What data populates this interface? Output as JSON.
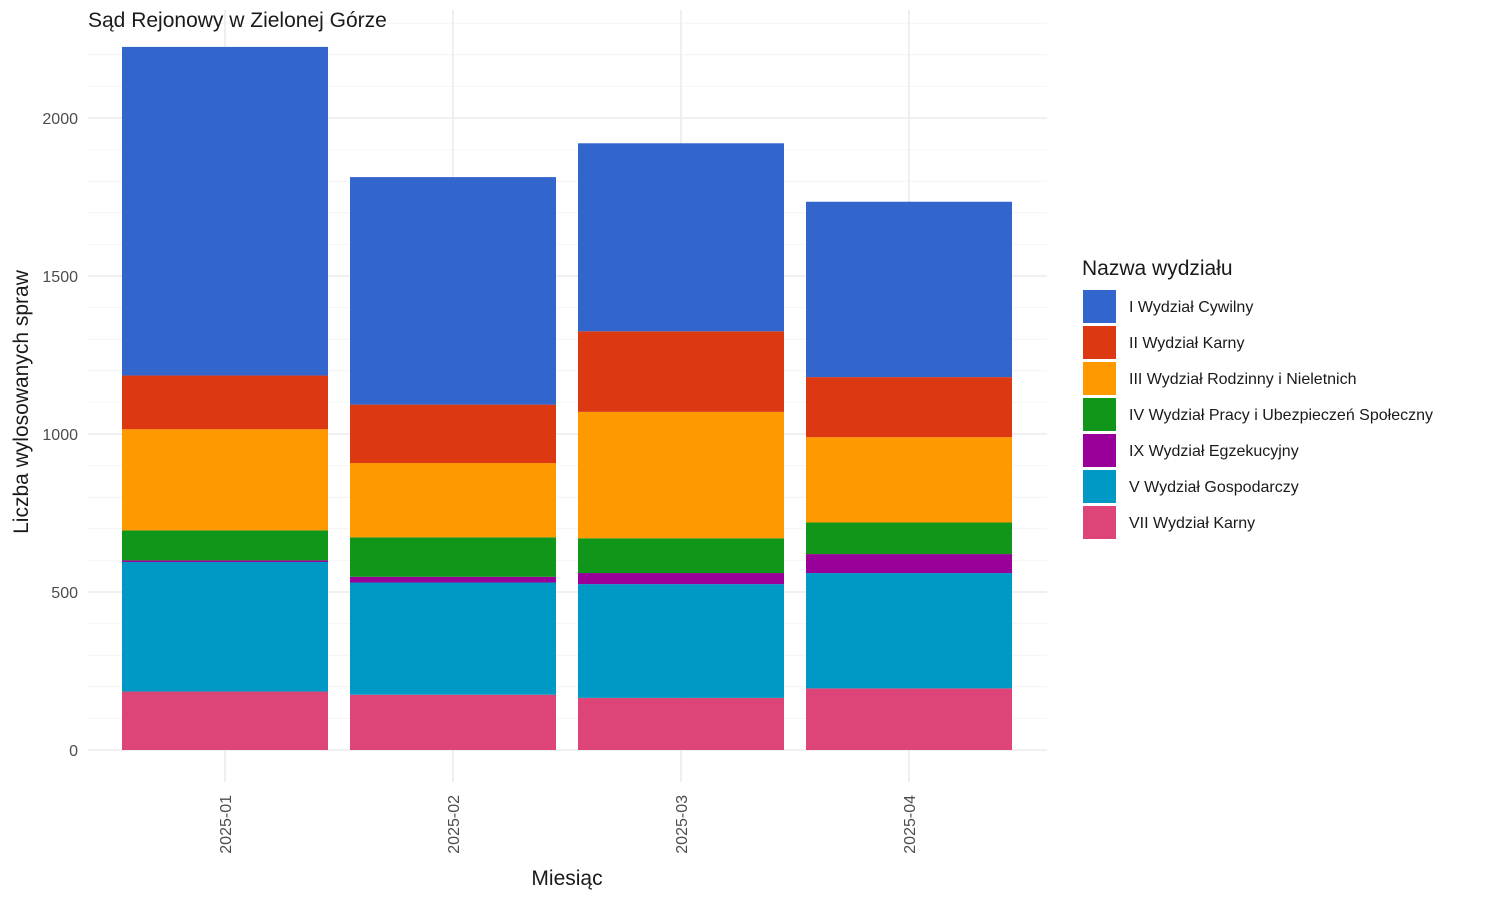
{
  "chart_data": {
    "type": "bar",
    "stacked": true,
    "title": "Sąd Rejonowy w Zielonej Górze",
    "xlabel": "Miesiąc",
    "ylabel": "Liczba wylosowanych spraw",
    "categories": [
      "2025-01",
      "2025-02",
      "2025-03",
      "2025-04"
    ],
    "ylim": [
      0,
      2300
    ],
    "yticks": [
      0,
      500,
      1000,
      1500,
      2000
    ],
    "ytick_labels": [
      "0",
      "500",
      "1000",
      "1500",
      "2000"
    ],
    "grid": true,
    "legend_title": "Nazwa wydziału",
    "legend_position": "right",
    "series": [
      {
        "name": "VII Wydział Karny",
        "color": "#DD4477",
        "values": [
          185,
          175,
          165,
          195
        ]
      },
      {
        "name": "V Wydział Gospodarczy",
        "color": "#0099C6",
        "values": [
          410,
          355,
          360,
          365
        ]
      },
      {
        "name": "IX Wydział Egzekucyjny",
        "color": "#990099",
        "values": [
          5,
          18,
          35,
          60
        ]
      },
      {
        "name": "IV Wydział Pracy i Ubezpieczeń Społeczny",
        "color": "#109618",
        "values": [
          95,
          125,
          110,
          100
        ]
      },
      {
        "name": "III Wydział Rodzinny i Nieletnich",
        "color": "#FF9900",
        "values": [
          320,
          235,
          400,
          270
        ]
      },
      {
        "name": "II Wydział Karny",
        "color": "#DC3912",
        "values": [
          170,
          185,
          255,
          190
        ]
      },
      {
        "name": "I Wydział Cywilny",
        "color": "#3366CC",
        "values": [
          1040,
          720,
          595,
          555
        ]
      }
    ],
    "legend_order": [
      "I Wydział Cywilny",
      "II Wydział Karny",
      "III Wydział Rodzinny i Nieletnich",
      "IV Wydział Pracy i Ubezpieczeń Społeczny",
      "IX Wydział Egzekucyjny",
      "V Wydział Gospodarczy",
      "VII Wydział Karny"
    ]
  }
}
